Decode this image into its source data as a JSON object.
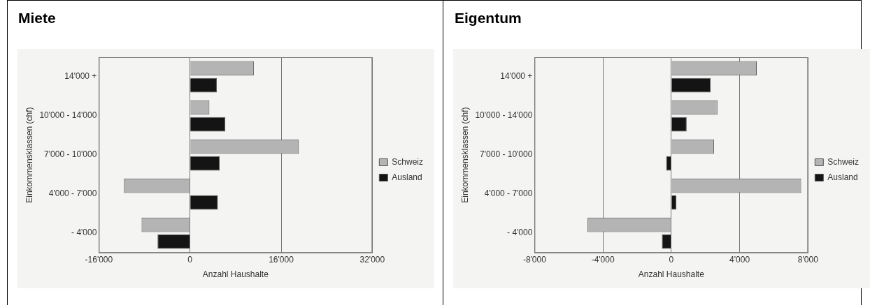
{
  "chart_data": [
    {
      "type": "bar",
      "title": "Miete",
      "orientation": "horizontal",
      "xlabel": "Anzahl Haushalte",
      "ylabel": "Einkommensklassen (chf)",
      "categories": [
        "14'000 +",
        "10'000 - 14'000",
        "7'000 - 10'000",
        "4'000 - 7'000",
        "- 4'000"
      ],
      "series": [
        {
          "name": "Schweiz",
          "color": "#b4b4b4",
          "values": [
            11200,
            3400,
            19100,
            -11600,
            -8500
          ]
        },
        {
          "name": "Ausland",
          "color": "#141414",
          "values": [
            4700,
            6200,
            5200,
            4900,
            -5700
          ]
        }
      ],
      "xlim": [
        -16000,
        32000
      ],
      "xticks": [
        {
          "value": -16000,
          "label": "-16'000"
        },
        0,
        {
          "value": 16000,
          "label": "16'000"
        },
        {
          "value": 32000,
          "label": "32'000"
        }
      ],
      "grid": "x",
      "legend": "right"
    },
    {
      "type": "bar",
      "title": "Eigentum",
      "orientation": "horizontal",
      "xlabel": "Anzahl Haushalte",
      "ylabel": "Einkommensklassen (chf)",
      "categories": [
        "14'000 +",
        "10'000 - 14'000",
        "7'000 - 10'000",
        "4'000 - 7'000",
        "- 4'000"
      ],
      "series": [
        {
          "name": "Schweiz",
          "color": "#b4b4b4",
          "values": [
            5000,
            2700,
            2500,
            7600,
            -4900
          ]
        },
        {
          "name": "Ausland",
          "color": "#141414",
          "values": [
            2300,
            900,
            -300,
            300,
            -550
          ]
        }
      ],
      "xlim": [
        -8000,
        8000
      ],
      "xticks": [
        {
          "value": -8000,
          "label": "-8'000"
        },
        {
          "value": -4000,
          "label": "-4'000"
        },
        0,
        {
          "value": 4000,
          "label": "4'000"
        },
        {
          "value": 8000,
          "label": "8'000"
        }
      ],
      "grid": "x",
      "legend": "right"
    }
  ]
}
